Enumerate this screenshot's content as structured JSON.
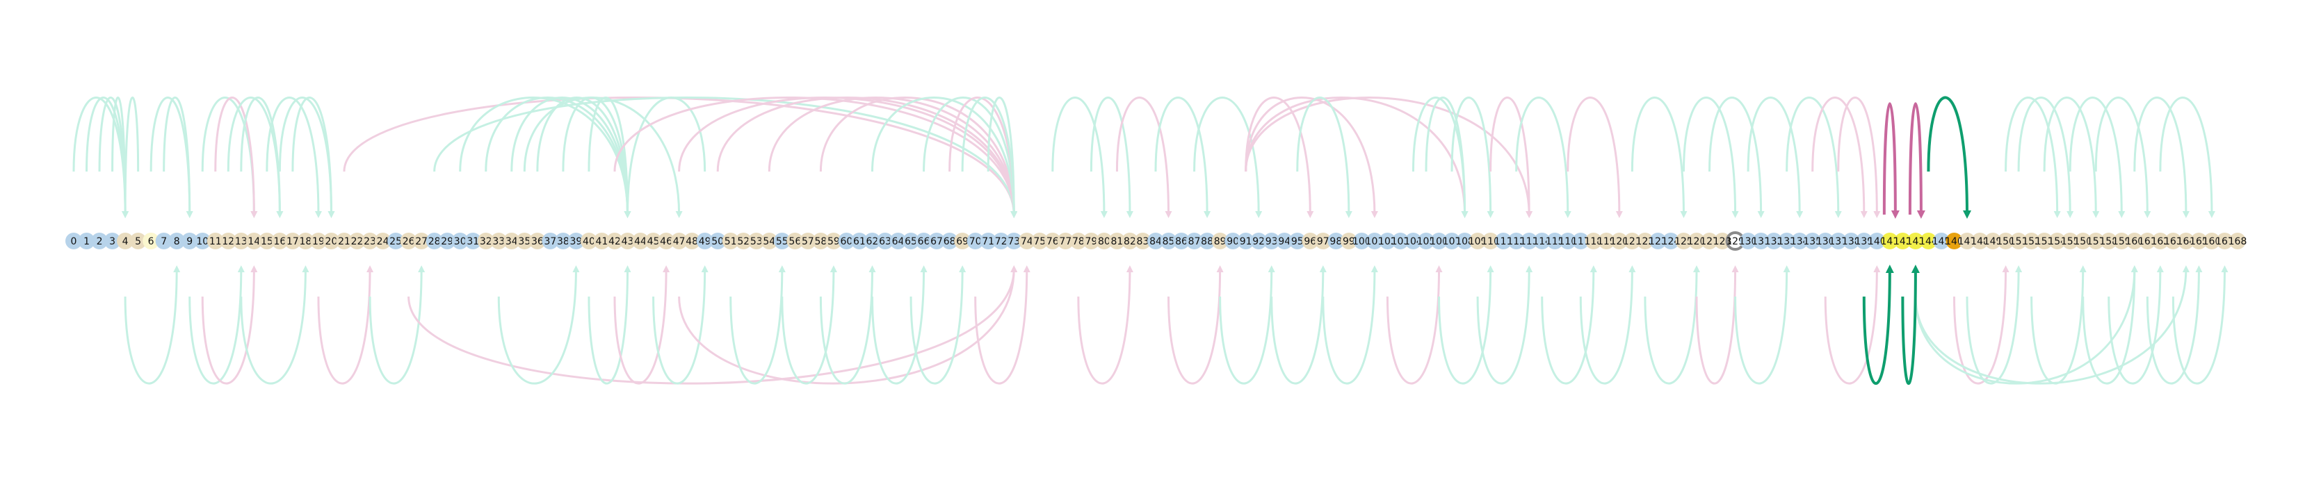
{
  "node_labels": [
    "0",
    "1",
    "2",
    "3",
    "4",
    "5",
    "6",
    "7",
    "8",
    "9",
    "10",
    "11",
    "12",
    "13",
    "14",
    "15",
    "16",
    "17",
    "18",
    "19",
    "20",
    "21",
    "22",
    "23",
    "24",
    "25",
    "26",
    "27",
    "28",
    "29",
    "30",
    "31",
    "32",
    "33",
    "34",
    "35",
    "36",
    "37",
    "38",
    "39",
    "40",
    "41",
    "42",
    "43",
    "44",
    "45",
    "46",
    "47",
    "48",
    "49",
    "50",
    "51",
    "52",
    "53",
    "54",
    "55",
    "56",
    "57",
    "58",
    "59",
    "60",
    "61",
    "62",
    "63",
    "64",
    "65",
    "66",
    "67",
    "68",
    "69",
    "70",
    "71",
    "72",
    "73",
    "74",
    "75",
    "76",
    "77",
    "78",
    "79",
    "80",
    "81",
    "82",
    "83",
    "84",
    "85",
    "86",
    "87",
    "88",
    "89",
    "90",
    "91",
    "92",
    "93",
    "94",
    "95",
    "96",
    "97",
    "98",
    "99",
    "100",
    "101",
    "102",
    "103",
    "104",
    "105",
    "106",
    "107",
    "108",
    "109",
    "110",
    "111",
    "112",
    "113",
    "114",
    "115",
    "116",
    "117",
    "118",
    "119",
    "120",
    "121",
    "122",
    "123",
    "124",
    "125",
    "126",
    "127",
    "128",
    "129",
    "130",
    "131",
    "132",
    "133",
    "134",
    "135",
    "136",
    "137",
    "138",
    "139",
    "140",
    "141",
    "142",
    "143",
    "144",
    "145",
    "146",
    "147",
    "148",
    "149",
    "150",
    "151",
    "152",
    "153",
    "154",
    "155",
    "156",
    "157",
    "158",
    "159",
    "160",
    "161",
    "162",
    "163",
    "164",
    "165",
    "166",
    "167",
    "168"
  ],
  "colors": {
    "edge_green": "#c5f0e3",
    "edge_pink": "#f0cfe0",
    "edge_highlight_green": "#0e9e6e",
    "edge_highlight_pink": "#c8679c",
    "node_blue": "#b7d3ea",
    "node_tan": "#e9dcbf",
    "node_yellow": "#f2ef4a",
    "node_orange": "#e8a20f",
    "node_grey": "#8a8a8a",
    "node_lightyellow": "#fbf7cf"
  },
  "node_styles": {
    "blue": [
      0,
      1,
      2,
      3,
      7,
      8,
      9,
      10,
      25,
      28,
      29,
      30,
      31,
      37,
      38,
      39,
      49,
      50,
      55,
      60,
      61,
      62,
      63,
      64,
      65,
      66,
      67,
      68,
      70,
      71,
      72,
      73,
      84,
      85,
      86,
      87,
      88,
      90,
      91,
      92,
      93,
      94,
      95,
      98,
      100,
      101,
      102,
      103,
      104,
      105,
      106,
      107,
      108,
      111,
      112,
      113,
      114,
      115,
      116,
      117,
      123,
      124,
      130,
      131,
      132,
      133,
      134,
      135,
      136,
      137,
      138,
      139,
      140,
      145,
      146
    ],
    "tan": [
      4,
      5,
      11,
      12,
      13,
      14,
      15,
      16,
      17,
      18,
      19,
      20,
      21,
      22,
      23,
      24,
      26,
      27,
      32,
      33,
      34,
      35,
      36,
      40,
      41,
      42,
      43,
      44,
      45,
      46,
      47,
      48,
      51,
      52,
      53,
      54,
      56,
      57,
      58,
      59,
      69,
      74,
      75,
      76,
      77,
      78,
      79,
      80,
      81,
      82,
      83,
      89,
      96,
      97,
      99,
      109,
      110,
      118,
      119,
      120,
      121,
      122,
      125,
      126,
      127,
      128,
      147,
      148,
      149,
      150,
      151,
      152,
      153,
      154,
      155,
      156,
      157,
      158,
      159,
      160,
      161,
      162,
      163,
      164,
      165,
      166,
      167,
      168
    ],
    "yellow": [
      141,
      142,
      143,
      144
    ],
    "orange": [
      146
    ],
    "grey": [
      129
    ],
    "lightyellow": [
      6
    ]
  },
  "edges": [
    {
      "from": 0,
      "to": 4,
      "side": "top",
      "color": "green"
    },
    {
      "from": 1,
      "to": 4,
      "side": "top",
      "color": "green"
    },
    {
      "from": 2,
      "to": 4,
      "side": "top",
      "color": "green"
    },
    {
      "from": 3,
      "to": 4,
      "side": "top",
      "color": "green"
    },
    {
      "from": 5,
      "to": 4,
      "side": "top",
      "color": "green"
    },
    {
      "from": 6,
      "to": 9,
      "side": "top",
      "color": "green"
    },
    {
      "from": 7,
      "to": 9,
      "side": "top",
      "color": "green"
    },
    {
      "from": 10,
      "to": 14,
      "side": "top",
      "color": "green"
    },
    {
      "from": 11,
      "to": 14,
      "side": "top",
      "color": "pink"
    },
    {
      "from": 12,
      "to": 16,
      "side": "top",
      "color": "green"
    },
    {
      "from": 13,
      "to": 16,
      "side": "top",
      "color": "green"
    },
    {
      "from": 15,
      "to": 19,
      "side": "top",
      "color": "green"
    },
    {
      "from": 16,
      "to": 20,
      "side": "top",
      "color": "green"
    },
    {
      "from": 17,
      "to": 20,
      "side": "top",
      "color": "green"
    },
    {
      "from": 21,
      "to": 73,
      "side": "top",
      "color": "pink"
    },
    {
      "from": 28,
      "to": 73,
      "side": "top",
      "color": "green"
    },
    {
      "from": 30,
      "to": 43,
      "side": "top",
      "color": "green"
    },
    {
      "from": 32,
      "to": 43,
      "side": "top",
      "color": "green"
    },
    {
      "from": 34,
      "to": 43,
      "side": "top",
      "color": "green"
    },
    {
      "from": 36,
      "to": 43,
      "side": "top",
      "color": "green"
    },
    {
      "from": 38,
      "to": 43,
      "side": "top",
      "color": "green"
    },
    {
      "from": 40,
      "to": 43,
      "side": "top",
      "color": "green"
    },
    {
      "from": 35,
      "to": 47,
      "side": "top",
      "color": "green"
    },
    {
      "from": 49,
      "to": 43,
      "side": "top",
      "color": "green"
    },
    {
      "from": 42,
      "to": 73,
      "side": "top",
      "color": "pink"
    },
    {
      "from": 47,
      "to": 73,
      "side": "top",
      "color": "pink"
    },
    {
      "from": 50,
      "to": 73,
      "side": "top",
      "color": "pink"
    },
    {
      "from": 54,
      "to": 73,
      "side": "top",
      "color": "pink"
    },
    {
      "from": 58,
      "to": 73,
      "side": "top",
      "color": "pink"
    },
    {
      "from": 62,
      "to": 73,
      "side": "top",
      "color": "green"
    },
    {
      "from": 66,
      "to": 73,
      "side": "top",
      "color": "green"
    },
    {
      "from": 68,
      "to": 73,
      "side": "top",
      "color": "pink"
    },
    {
      "from": 69,
      "to": 73,
      "side": "top",
      "color": "green"
    },
    {
      "from": 71,
      "to": 73,
      "side": "top",
      "color": "green"
    },
    {
      "from": 76,
      "to": 80,
      "side": "top",
      "color": "green"
    },
    {
      "from": 79,
      "to": 82,
      "side": "top",
      "color": "green"
    },
    {
      "from": 81,
      "to": 85,
      "side": "top",
      "color": "pink"
    },
    {
      "from": 84,
      "to": 88,
      "side": "top",
      "color": "green"
    },
    {
      "from": 87,
      "to": 92,
      "side": "top",
      "color": "green"
    },
    {
      "from": 91,
      "to": 96,
      "side": "top",
      "color": "pink"
    },
    {
      "from": 91,
      "to": 101,
      "side": "top",
      "color": "pink"
    },
    {
      "from": 91,
      "to": 108,
      "side": "top",
      "color": "pink"
    },
    {
      "from": 91,
      "to": 113,
      "side": "top",
      "color": "pink"
    },
    {
      "from": 95,
      "to": 99,
      "side": "top",
      "color": "green"
    },
    {
      "from": 104,
      "to": 108,
      "side": "top",
      "color": "green"
    },
    {
      "from": 105,
      "to": 108,
      "side": "top",
      "color": "green"
    },
    {
      "from": 107,
      "to": 110,
      "side": "top",
      "color": "green"
    },
    {
      "from": 110,
      "to": 113,
      "side": "top",
      "color": "pink"
    },
    {
      "from": 112,
      "to": 116,
      "side": "top",
      "color": "green"
    },
    {
      "from": 116,
      "to": 120,
      "side": "top",
      "color": "pink"
    },
    {
      "from": 121,
      "to": 125,
      "side": "top",
      "color": "green"
    },
    {
      "from": 125,
      "to": 129,
      "side": "top",
      "color": "green"
    },
    {
      "from": 127,
      "to": 131,
      "side": "top",
      "color": "green"
    },
    {
      "from": 130,
      "to": 134,
      "side": "top",
      "color": "green"
    },
    {
      "from": 133,
      "to": 137,
      "side": "top",
      "color": "green"
    },
    {
      "from": 135,
      "to": 139,
      "side": "top",
      "color": "pink"
    },
    {
      "from": 137,
      "to": 140,
      "side": "top",
      "color": "pink"
    },
    {
      "from": 141,
      "to": 141,
      "side": "top",
      "color": "highlight_pink"
    },
    {
      "from": 143,
      "to": 143,
      "side": "top",
      "color": "highlight_pink"
    },
    {
      "from": 144,
      "to": 147,
      "side": "top",
      "color": "highlight_green"
    },
    {
      "from": 150,
      "to": 154,
      "side": "top",
      "color": "green"
    },
    {
      "from": 151,
      "to": 155,
      "side": "top",
      "color": "green"
    },
    {
      "from": 153,
      "to": 157,
      "side": "top",
      "color": "green"
    },
    {
      "from": 155,
      "to": 159,
      "side": "top",
      "color": "green"
    },
    {
      "from": 157,
      "to": 161,
      "side": "top",
      "color": "green"
    },
    {
      "from": 160,
      "to": 164,
      "side": "top",
      "color": "green"
    },
    {
      "from": 162,
      "to": 166,
      "side": "top",
      "color": "green"
    },
    {
      "from": 4,
      "to": 8,
      "side": "bottom",
      "color": "green"
    },
    {
      "from": 9,
      "to": 13,
      "side": "bottom",
      "color": "green"
    },
    {
      "from": 10,
      "to": 14,
      "side": "bottom",
      "color": "pink"
    },
    {
      "from": 13,
      "to": 18,
      "side": "bottom",
      "color": "green"
    },
    {
      "from": 19,
      "to": 23,
      "side": "bottom",
      "color": "pink"
    },
    {
      "from": 23,
      "to": 27,
      "side": "bottom",
      "color": "green"
    },
    {
      "from": 26,
      "to": 73,
      "side": "bottom",
      "color": "pink"
    },
    {
      "from": 33,
      "to": 39,
      "side": "bottom",
      "color": "green"
    },
    {
      "from": 40,
      "to": 43,
      "side": "bottom",
      "color": "green"
    },
    {
      "from": 42,
      "to": 46,
      "side": "bottom",
      "color": "pink"
    },
    {
      "from": 45,
      "to": 49,
      "side": "bottom",
      "color": "green"
    },
    {
      "from": 47,
      "to": 73,
      "side": "bottom",
      "color": "pink"
    },
    {
      "from": 51,
      "to": 55,
      "side": "bottom",
      "color": "green"
    },
    {
      "from": 55,
      "to": 59,
      "side": "bottom",
      "color": "green"
    },
    {
      "from": 58,
      "to": 62,
      "side": "bottom",
      "color": "green"
    },
    {
      "from": 62,
      "to": 66,
      "side": "bottom",
      "color": "green"
    },
    {
      "from": 65,
      "to": 69,
      "side": "bottom",
      "color": "green"
    },
    {
      "from": 70,
      "to": 74,
      "side": "bottom",
      "color": "pink"
    },
    {
      "from": 78,
      "to": 82,
      "side": "bottom",
      "color": "pink"
    },
    {
      "from": 85,
      "to": 89,
      "side": "bottom",
      "color": "pink"
    },
    {
      "from": 89,
      "to": 93,
      "side": "bottom",
      "color": "green"
    },
    {
      "from": 93,
      "to": 97,
      "side": "bottom",
      "color": "green"
    },
    {
      "from": 97,
      "to": 101,
      "side": "bottom",
      "color": "green"
    },
    {
      "from": 102,
      "to": 106,
      "side": "bottom",
      "color": "pink"
    },
    {
      "from": 106,
      "to": 110,
      "side": "bottom",
      "color": "green"
    },
    {
      "from": 109,
      "to": 113,
      "side": "bottom",
      "color": "green"
    },
    {
      "from": 114,
      "to": 118,
      "side": "bottom",
      "color": "green"
    },
    {
      "from": 117,
      "to": 121,
      "side": "bottom",
      "color": "green"
    },
    {
      "from": 122,
      "to": 126,
      "side": "bottom",
      "color": "green"
    },
    {
      "from": 126,
      "to": 129,
      "side": "bottom",
      "color": "pink"
    },
    {
      "from": 129,
      "to": 133,
      "side": "bottom",
      "color": "green"
    },
    {
      "from": 136,
      "to": 140,
      "side": "bottom",
      "color": "pink"
    },
    {
      "from": 139,
      "to": 141,
      "side": "bottom",
      "color": "highlight_green"
    },
    {
      "from": 142,
      "to": 143,
      "side": "bottom",
      "color": "highlight_green"
    },
    {
      "from": 146,
      "to": 150,
      "side": "bottom",
      "color": "pink"
    },
    {
      "from": 143,
      "to": 160,
      "side": "bottom",
      "color": "green"
    },
    {
      "from": 143,
      "to": 164,
      "side": "bottom",
      "color": "green"
    },
    {
      "from": 147,
      "to": 151,
      "side": "bottom",
      "color": "green"
    },
    {
      "from": 152,
      "to": 156,
      "side": "bottom",
      "color": "green"
    },
    {
      "from": 156,
      "to": 160,
      "side": "bottom",
      "color": "green"
    },
    {
      "from": 158,
      "to": 162,
      "side": "bottom",
      "color": "green"
    },
    {
      "from": 161,
      "to": 165,
      "side": "bottom",
      "color": "green"
    },
    {
      "from": 163,
      "to": 167,
      "side": "bottom",
      "color": "green"
    }
  ]
}
